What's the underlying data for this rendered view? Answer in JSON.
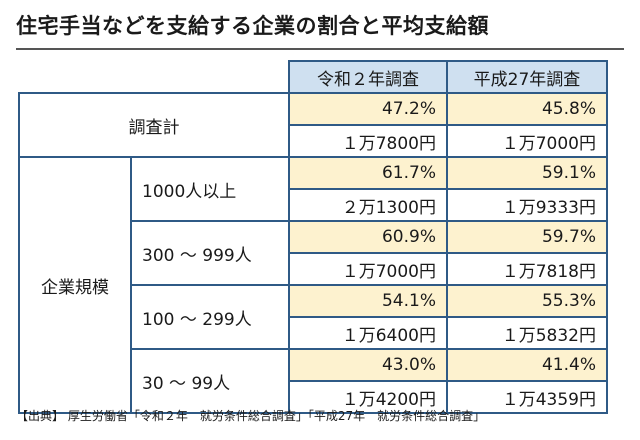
{
  "title": "住宅手当などを支給する企業の割合と平均支給額",
  "columns": [
    "令和２年調査",
    "平成27年調査"
  ],
  "total": {
    "label": "調査計",
    "pct": [
      "47.2%",
      "45.8%"
    ],
    "amount": [
      "１万7800円",
      "１万7000円"
    ]
  },
  "group_label": "企業規模",
  "sizes": [
    {
      "label": "1000人以上",
      "pct": [
        "61.7%",
        "59.1%"
      ],
      "amount": [
        "２万1300円",
        "１万9333円"
      ]
    },
    {
      "label": "300 ～ 999人",
      "pct": [
        "60.9%",
        "59.7%"
      ],
      "amount": [
        "１万7000円",
        "１万7818円"
      ]
    },
    {
      "label": "100 ～ 299人",
      "pct": [
        "54.1%",
        "55.3%"
      ],
      "amount": [
        "１万6400円",
        "１万5832円"
      ]
    },
    {
      "label": "30 ～ 99人",
      "pct": [
        "43.0%",
        "41.4%"
      ],
      "amount": [
        "１万4200円",
        "１万4359円"
      ]
    }
  ],
  "source": "【出典】 厚生労働省「令和２年　就労条件総合調査」「平成27年　就労条件総合調査」"
}
